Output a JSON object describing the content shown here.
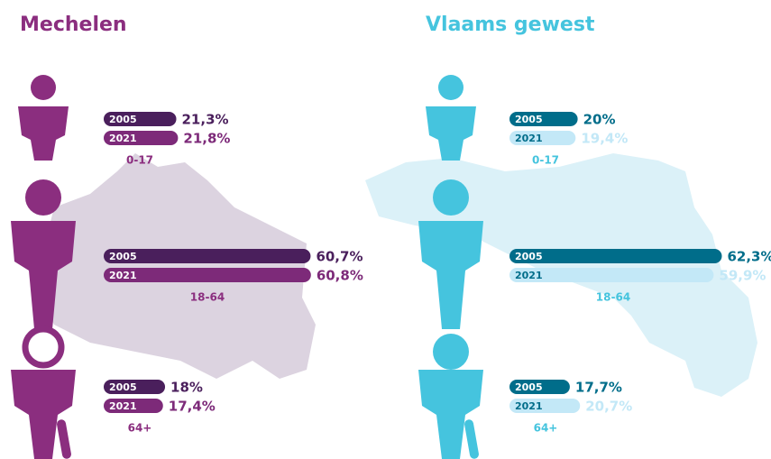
{
  "chart_data": [
    {
      "type": "bar",
      "title": "Mechelen",
      "color": "#8b2e7f",
      "categories": [
        "0-17",
        "18-64",
        "64+"
      ],
      "series": [
        {
          "name": "2005",
          "color": "#4a1f5c",
          "values": [
            21.3,
            60.7,
            18
          ],
          "value_labels": [
            "21,3%",
            "60,7%",
            "18%"
          ]
        },
        {
          "name": "2021",
          "color": "#7d2a79",
          "values": [
            21.8,
            60.8,
            17.4
          ],
          "value_labels": [
            "21,8%",
            "60,8%",
            "17,4%"
          ]
        }
      ]
    },
    {
      "type": "bar",
      "title": "Vlaams gewest",
      "color": "#45c4de",
      "categories": [
        "0-17",
        "18-64",
        "64+"
      ],
      "series": [
        {
          "name": "2005",
          "color": "#006d8a",
          "values": [
            20,
            62.3,
            17.7
          ],
          "value_labels": [
            "20%",
            "62,3%",
            "17,7%"
          ]
        },
        {
          "name": "2021",
          "color": "#c3e8f7",
          "values": [
            19.4,
            59.9,
            20.7
          ],
          "value_labels": [
            "19,4%",
            "59,9%",
            "20,7%"
          ]
        }
      ]
    }
  ]
}
